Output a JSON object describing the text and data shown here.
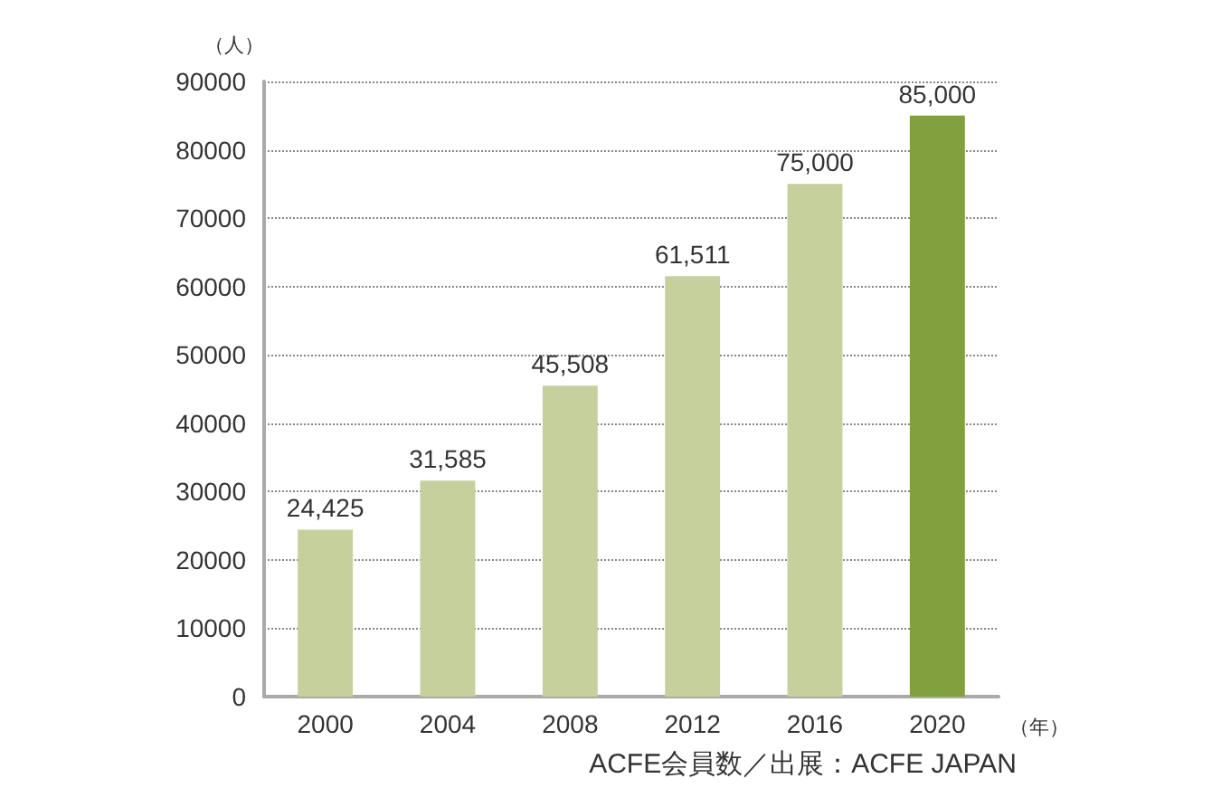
{
  "chart_data": {
    "type": "bar",
    "ylabel": "（人）",
    "xlabel": "（年）",
    "categories": [
      "2000",
      "2004",
      "2008",
      "2012",
      "2016",
      "2020"
    ],
    "values": [
      24425,
      31585,
      45508,
      61511,
      75000,
      85000
    ],
    "value_labels": [
      "24,425",
      "31,585",
      "45,508",
      "61,511",
      "75,000",
      "85,000"
    ],
    "colors": [
      "#c6d09c",
      "#c6d09c",
      "#c6d09c",
      "#c6d09c",
      "#c6d09c",
      "#82a03e"
    ],
    "ylim": [
      0,
      90000
    ],
    "yticks": [
      0,
      10000,
      20000,
      30000,
      40000,
      50000,
      60000,
      70000,
      80000,
      90000
    ],
    "grid": "y",
    "annotations": [
      "ACFE会員数／出展：ACFE JAPAN"
    ]
  }
}
